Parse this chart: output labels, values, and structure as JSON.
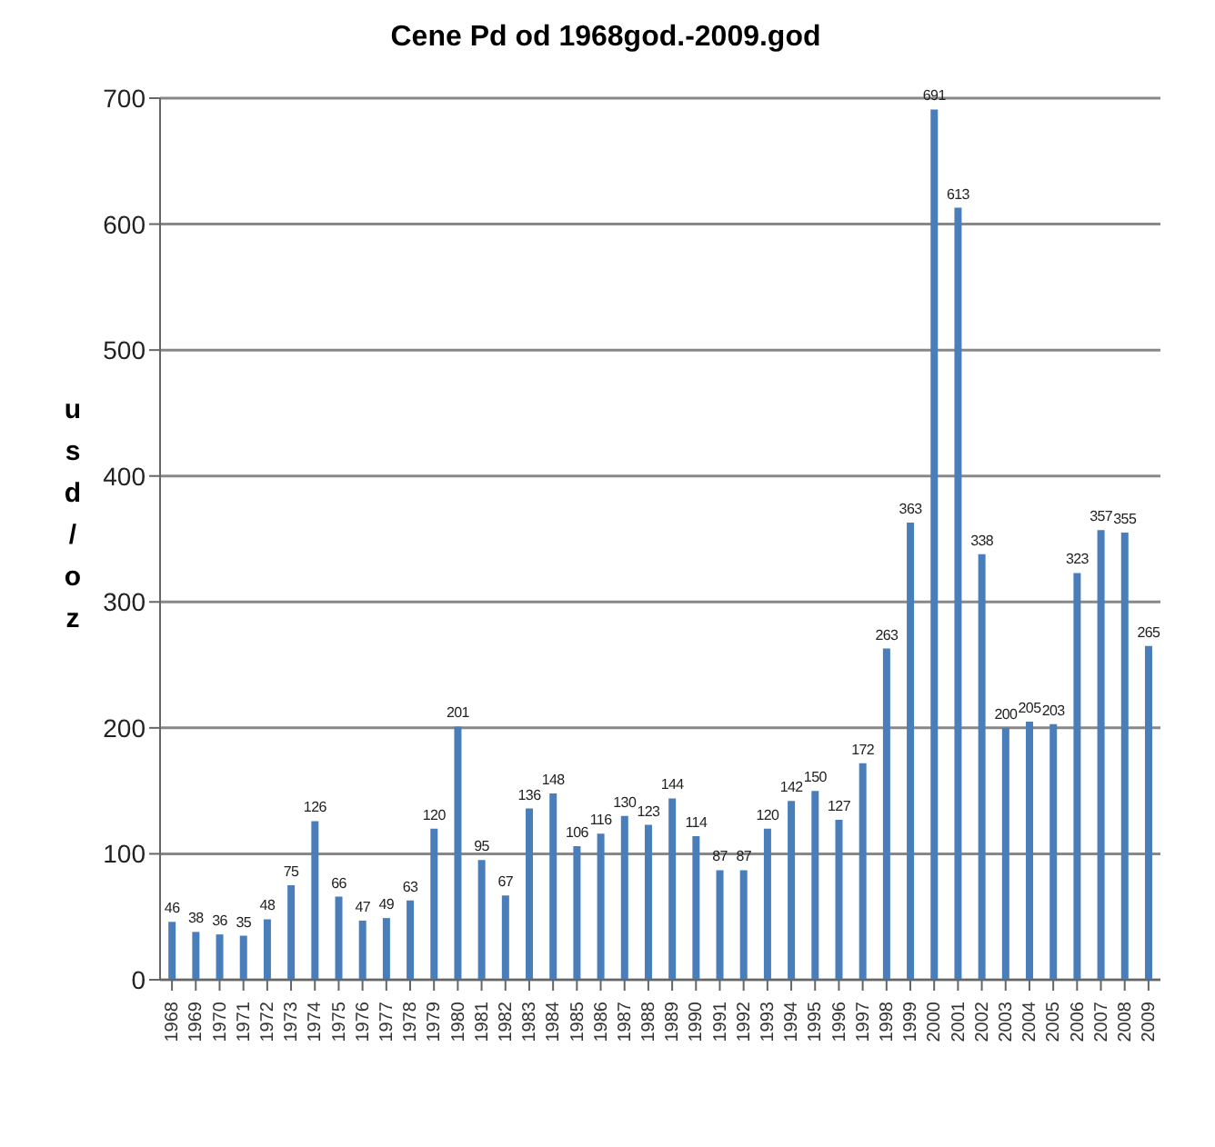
{
  "chart_data": {
    "type": "bar",
    "title": "Cene Pd od 1968god.-2009.god",
    "ylabel": "usd/oz",
    "categories": [
      "1968",
      "1969",
      "1970",
      "1971",
      "1972",
      "1973",
      "1974",
      "1975",
      "1976",
      "1977",
      "1978",
      "1979",
      "1980",
      "1981",
      "1982",
      "1983",
      "1984",
      "1985",
      "1986",
      "1987",
      "1988",
      "1989",
      "1990",
      "1991",
      "1992",
      "1993",
      "1994",
      "1995",
      "1996",
      "1997",
      "1998",
      "1999",
      "2000",
      "2001",
      "2002",
      "2003",
      "2004",
      "2005",
      "2006",
      "2007",
      "2008",
      "2009"
    ],
    "values": [
      46,
      38,
      36,
      35,
      48,
      75,
      126,
      66,
      47,
      49,
      63,
      120,
      201,
      95,
      67,
      136,
      148,
      106,
      116,
      130,
      123,
      144,
      114,
      87,
      87,
      120,
      142,
      150,
      127,
      172,
      263,
      363,
      691,
      613,
      338,
      200,
      205,
      203,
      323,
      357,
      355,
      265
    ],
    "color": "#4a7ebb",
    "ylim": [
      0,
      700
    ],
    "yticks": [
      0,
      100,
      200,
      300,
      400,
      500,
      600,
      700
    ],
    "grid": "y",
    "data_labels": true
  }
}
